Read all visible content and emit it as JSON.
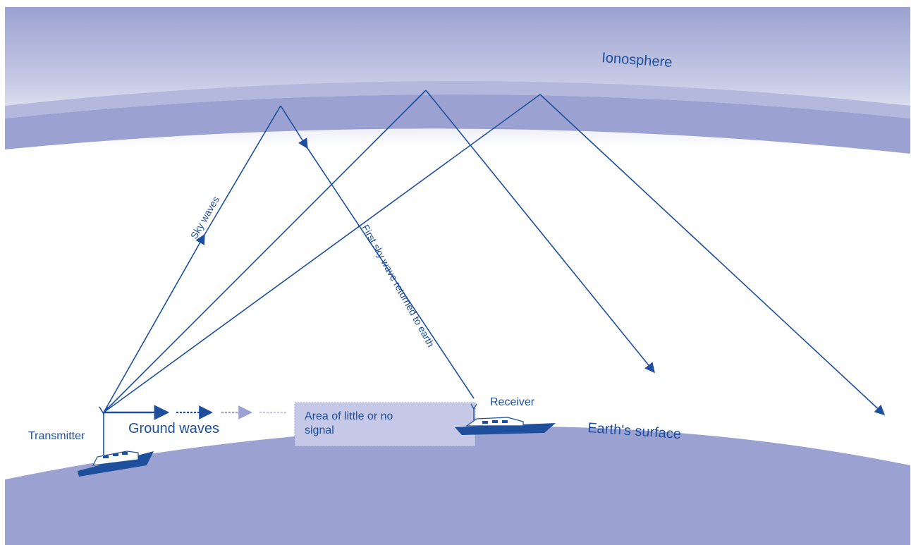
{
  "labels": {
    "ionosphere": "Ionosphere",
    "sky_waves": "Sky waves",
    "first_sky_wave": "First sky wave returned to earth",
    "transmitter": "Transmitter",
    "receiver": "Receiver",
    "ground_waves": "Ground waves",
    "no_signal_line1": "Area of little or no",
    "no_signal_line2": "signal",
    "earths_surface": "Earth's surface"
  },
  "colors": {
    "ray": "#1e4f9c",
    "ionosphere_band": "#9ba2d1",
    "ionosphere_top": "#8a91c6",
    "earth": "#9ba2d1",
    "no_signal_box": "#c5c8e6",
    "text": "#1e4f9c"
  }
}
